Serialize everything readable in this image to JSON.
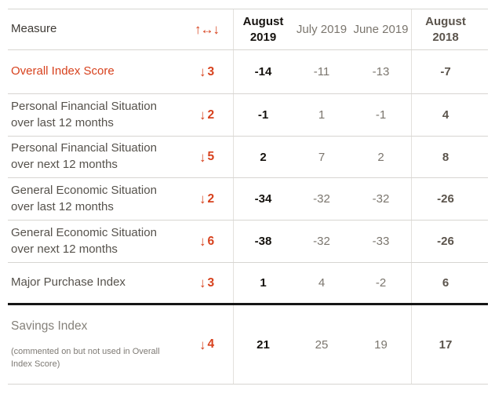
{
  "accent_color": "#d7411d",
  "chart_data": {
    "type": "table",
    "header": {
      "measure_label": "Measure",
      "sort_arrows": "↑↔↓",
      "columns": [
        "August 2019",
        "July 2019",
        "June 2019",
        "August 2018"
      ]
    },
    "rows": [
      {
        "measure": "Overall Index Score",
        "arrow": "↓",
        "change": "3",
        "values": [
          "-14",
          "-11",
          "-13",
          "-7"
        ]
      },
      {
        "measure": "Personal Financial Situation over last 12 months",
        "arrow": "↓",
        "change": "2",
        "values": [
          "-1",
          "1",
          "-1",
          "4"
        ]
      },
      {
        "measure": "Personal Financial Situation over next 12 months",
        "arrow": "↓",
        "change": "5",
        "values": [
          "2",
          "7",
          "2",
          "8"
        ]
      },
      {
        "measure": "General Economic Situation over last 12 months",
        "arrow": "↓",
        "change": "2",
        "values": [
          "-34",
          "-32",
          "-32",
          "-26"
        ]
      },
      {
        "measure": "General Economic Situation over next 12 months",
        "arrow": "↓",
        "change": "6",
        "values": [
          "-38",
          "-32",
          "-33",
          "-26"
        ]
      },
      {
        "measure": "Major Purchase Index",
        "arrow": "↓",
        "change": "3",
        "values": [
          "1",
          "4",
          "-2",
          "6"
        ]
      },
      {
        "measure": "Savings Index",
        "note": "(commented on but not used in Overall Index Score)",
        "arrow": "↓",
        "change": "4",
        "values": [
          "21",
          "25",
          "19",
          "17"
        ]
      }
    ]
  }
}
